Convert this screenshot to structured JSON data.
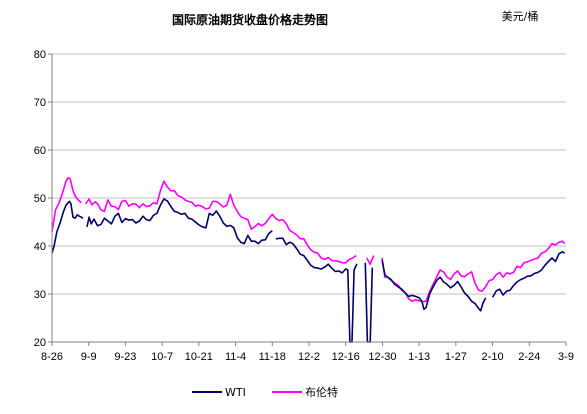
{
  "chart_data": {
    "type": "line",
    "title": "国际原油期货收盘价格走势图",
    "unit_label": "美元/桶",
    "xlabel": "",
    "ylabel": "",
    "ylim": [
      20,
      80
    ],
    "yticks": [
      "20",
      "30",
      "40",
      "50",
      "60",
      "70",
      "80"
    ],
    "xticks": [
      "8-26",
      "9-9",
      "9-23",
      "10-7",
      "10-21",
      "11-4",
      "11-18",
      "12-2",
      "12-16",
      "12-30",
      "1-13",
      "1-27",
      "2-10",
      "2-24",
      "3-9"
    ],
    "grid": true,
    "legend_position": "bottom",
    "series": [
      {
        "name": "WTI",
        "color": "#000066",
        "points": [
          [
            0.0,
            38.5
          ],
          [
            0.3,
            40
          ],
          [
            0.7,
            43
          ],
          [
            1.2,
            45
          ],
          [
            1.6,
            47
          ],
          [
            2.0,
            48.5
          ],
          [
            2.3,
            49
          ],
          [
            2.5,
            49.3
          ],
          [
            2.7,
            48.8
          ],
          [
            3.0,
            46
          ],
          [
            3.3,
            45.8
          ],
          [
            3.6,
            46.5
          ],
          [
            3.9,
            46.2
          ],
          [
            4.2,
            46
          ],
          [
            4.4,
            45.7
          ],
          null,
          [
            5.0,
            44
          ],
          [
            5.3,
            46
          ],
          [
            5.6,
            44.6
          ],
          [
            6.0,
            45.6
          ],
          [
            6.5,
            44.2
          ],
          [
            7.0,
            44.5
          ],
          [
            7.5,
            45.8
          ],
          [
            8.0,
            45.2
          ],
          [
            8.5,
            44.6
          ],
          [
            9.0,
            46.2
          ],
          [
            9.5,
            46.8
          ],
          [
            10.0,
            44.9
          ],
          [
            10.5,
            45.7
          ],
          [
            11.0,
            45.4
          ],
          [
            11.5,
            45.5
          ],
          [
            12.0,
            44.8
          ],
          [
            12.5,
            45.2
          ],
          [
            13.0,
            46.2
          ],
          [
            13.5,
            45.5
          ],
          [
            14.0,
            45.3
          ],
          [
            14.5,
            46.4
          ],
          [
            15.0,
            46.8
          ],
          [
            15.5,
            48.5
          ],
          [
            16.0,
            49.8
          ],
          [
            16.5,
            49.4
          ],
          [
            17.0,
            48.2
          ],
          [
            17.5,
            47.2
          ],
          [
            18.0,
            47
          ],
          [
            18.5,
            46.6
          ],
          [
            19.0,
            46.8
          ],
          [
            19.5,
            45.8
          ],
          [
            20.0,
            45.6
          ],
          [
            20.5,
            45
          ],
          [
            21.0,
            44.4
          ],
          [
            21.5,
            44
          ],
          [
            22.0,
            43.8
          ],
          [
            22.5,
            46.8
          ],
          [
            23.0,
            46.4
          ],
          [
            23.5,
            47.3
          ],
          [
            24.0,
            46.2
          ],
          [
            24.5,
            44.8
          ],
          [
            25.0,
            44.1
          ],
          [
            25.5,
            44.3
          ],
          [
            26.0,
            43.8
          ],
          [
            26.5,
            41.7
          ],
          [
            27.0,
            40.8
          ],
          [
            27.5,
            40.5
          ],
          [
            28.0,
            42.2
          ],
          [
            28.5,
            41
          ],
          [
            29.0,
            41
          ],
          [
            29.5,
            40.5
          ],
          [
            30.0,
            41.2
          ],
          [
            30.5,
            41.3
          ],
          [
            31.0,
            42.6
          ],
          [
            31.5,
            43.2
          ],
          null,
          [
            32.0,
            41.5
          ],
          [
            32.5,
            41.6
          ],
          [
            33.0,
            41.6
          ],
          [
            33.5,
            40.3
          ],
          [
            34.0,
            40.8
          ],
          [
            34.5,
            40.4
          ],
          [
            35.0,
            39.4
          ],
          [
            35.5,
            38.3
          ],
          [
            36.0,
            38
          ],
          [
            36.5,
            37
          ],
          [
            37.0,
            36
          ],
          [
            37.5,
            35.5
          ],
          [
            38.0,
            35.4
          ],
          [
            38.5,
            35.2
          ],
          [
            39.0,
            35.6
          ],
          [
            39.5,
            36.2
          ],
          [
            40.0,
            35.4
          ],
          [
            40.5,
            34.7
          ],
          [
            41.0,
            34.8
          ],
          [
            41.5,
            34.4
          ],
          [
            42.0,
            35.2
          ],
          [
            42.3,
            35.0
          ],
          [
            42.6,
            20
          ],
          [
            42.9,
            20
          ],
          [
            43.2,
            35.0
          ],
          [
            43.6,
            36.3
          ],
          null,
          [
            44.8,
            36.5
          ],
          [
            45.1,
            20
          ],
          [
            45.5,
            20
          ],
          [
            45.8,
            35.5
          ],
          null,
          [
            47.2,
            37
          ],
          [
            47.6,
            34
          ],
          [
            48.0,
            33.5
          ],
          [
            48.5,
            33
          ],
          [
            49.0,
            32
          ],
          [
            49.5,
            31.5
          ],
          [
            50.0,
            31
          ],
          [
            50.5,
            30.2
          ],
          [
            51.0,
            29.5
          ],
          [
            51.5,
            29.7
          ],
          [
            52.0,
            29.5
          ],
          [
            52.5,
            29.2
          ],
          [
            52.9,
            28.5
          ],
          [
            53.2,
            26.8
          ],
          [
            53.5,
            27.2
          ],
          [
            54.0,
            30
          ],
          [
            54.5,
            31.5
          ],
          [
            55.0,
            32.8
          ],
          [
            55.5,
            33.5
          ],
          [
            56.0,
            32.5
          ],
          [
            56.5,
            32
          ],
          [
            57.0,
            31.3
          ],
          [
            57.5,
            31.8
          ],
          [
            58.0,
            32.6
          ],
          [
            58.5,
            31.5
          ],
          [
            59.0,
            30.2
          ],
          [
            59.5,
            29.5
          ],
          [
            60.0,
            28.5
          ],
          [
            60.5,
            28
          ],
          [
            61.0,
            27
          ],
          [
            61.3,
            26.5
          ],
          [
            61.6,
            28
          ],
          [
            62.0,
            29.2
          ],
          null,
          [
            63.0,
            29.3
          ],
          [
            63.5,
            30.6
          ],
          [
            64.0,
            31
          ],
          [
            64.5,
            29.8
          ],
          [
            65.0,
            30.6
          ],
          [
            65.5,
            30.8
          ],
          [
            66.0,
            31.8
          ],
          [
            66.5,
            32.5
          ],
          [
            67.0,
            33
          ],
          [
            67.5,
            33.3
          ],
          [
            68.0,
            33.7
          ],
          [
            68.5,
            33.8
          ],
          [
            69.0,
            34.3
          ],
          [
            69.5,
            34.5
          ],
          [
            70.0,
            35
          ],
          [
            70.5,
            36
          ],
          [
            71.0,
            36.8
          ],
          [
            71.5,
            37.5
          ],
          [
            72.0,
            36.8
          ],
          [
            72.5,
            38.4
          ],
          [
            73.0,
            38.8
          ],
          [
            73.3,
            38.5
          ]
        ]
      },
      {
        "name": "布伦特",
        "color": "#ff00ff",
        "points": [
          [
            0.0,
            43
          ],
          [
            0.5,
            47.5
          ],
          [
            1.0,
            49
          ],
          [
            1.5,
            51
          ],
          [
            2.0,
            53.5
          ],
          [
            2.3,
            54.2
          ],
          [
            2.6,
            54
          ],
          [
            3.0,
            51.5
          ],
          [
            3.4,
            50.2
          ],
          [
            3.8,
            49.5
          ],
          [
            4.2,
            49
          ],
          null,
          [
            4.8,
            48.8
          ],
          [
            5.3,
            49.8
          ],
          [
            5.7,
            48.6
          ],
          [
            6.2,
            49.2
          ],
          [
            6.6,
            48.6
          ],
          [
            7.0,
            47.5
          ],
          [
            7.5,
            47.2
          ],
          [
            8.0,
            49.6
          ],
          [
            8.5,
            48.3
          ],
          [
            9.0,
            48.2
          ],
          [
            9.5,
            47.6
          ],
          [
            10.0,
            49.3
          ],
          [
            10.5,
            49.5
          ],
          [
            11.0,
            48.3
          ],
          [
            11.5,
            48.8
          ],
          [
            12.0,
            48.7
          ],
          [
            12.5,
            48
          ],
          [
            13.0,
            48.8
          ],
          [
            13.5,
            48.2
          ],
          [
            14.0,
            48.4
          ],
          [
            14.5,
            49
          ],
          [
            15.0,
            48.8
          ],
          [
            15.5,
            51.5
          ],
          [
            16.0,
            53.5
          ],
          [
            16.5,
            52.3
          ],
          [
            17.0,
            51.5
          ],
          [
            17.5,
            51.5
          ],
          [
            18.0,
            50.5
          ],
          [
            18.5,
            50.2
          ],
          [
            19.0,
            49.6
          ],
          [
            19.5,
            49.3
          ],
          [
            20.0,
            49.1
          ],
          [
            20.5,
            48.3
          ],
          [
            21.0,
            48.5
          ],
          [
            21.5,
            48.2
          ],
          [
            22.0,
            47.7
          ],
          [
            22.5,
            47.9
          ],
          [
            23.0,
            49.3
          ],
          [
            23.5,
            49.3
          ],
          [
            24.0,
            48.8
          ],
          [
            24.5,
            48.1
          ],
          [
            25.0,
            48.5
          ],
          [
            25.5,
            50.8
          ],
          [
            26.0,
            48.5
          ],
          [
            26.5,
            47.2
          ],
          [
            27.0,
            46.1
          ],
          [
            27.5,
            45.8
          ],
          [
            28.0,
            45.5
          ],
          [
            28.5,
            43.5
          ],
          [
            29.0,
            44
          ],
          [
            29.5,
            44.7
          ],
          [
            30.0,
            44.2
          ],
          [
            30.5,
            44.7
          ],
          [
            31.0,
            45.7
          ],
          [
            31.5,
            46.6
          ],
          [
            32.0,
            45.7
          ],
          [
            32.5,
            45.3
          ],
          [
            33.0,
            45.5
          ],
          [
            33.5,
            44.6
          ],
          [
            34.0,
            43.2
          ],
          [
            34.5,
            42.8
          ],
          [
            35.0,
            42.3
          ],
          [
            35.5,
            41.5
          ],
          [
            36.0,
            41.5
          ],
          [
            36.5,
            40.2
          ],
          [
            37.0,
            39.2
          ],
          [
            37.5,
            38.7
          ],
          [
            38.0,
            38.5
          ],
          [
            38.5,
            37.5
          ],
          [
            39.0,
            37.2
          ],
          [
            39.5,
            37.6
          ],
          [
            40.0,
            37
          ],
          [
            40.5,
            36.9
          ],
          [
            41.0,
            36.8
          ],
          [
            41.5,
            36.5
          ],
          [
            42.0,
            36.5
          ],
          [
            42.5,
            37.2
          ],
          [
            43.0,
            37.5
          ],
          [
            43.5,
            38
          ],
          null,
          [
            45.0,
            37.5
          ],
          [
            45.5,
            36.2
          ],
          [
            46.0,
            38
          ],
          null,
          [
            47.2,
            37.5
          ],
          [
            47.6,
            33.5
          ],
          [
            48.0,
            33.5
          ],
          [
            48.5,
            32.8
          ],
          [
            49.0,
            32.3
          ],
          [
            49.5,
            31.8
          ],
          [
            50.0,
            30.8
          ],
          [
            50.5,
            30.3
          ],
          [
            51.0,
            29
          ],
          [
            51.5,
            28.5
          ],
          [
            52.0,
            28.8
          ],
          [
            52.5,
            28.6
          ],
          [
            53.0,
            28.4
          ],
          [
            53.5,
            28.5
          ],
          [
            54.0,
            30.5
          ],
          [
            54.5,
            32
          ],
          [
            55.0,
            33.5
          ],
          [
            55.5,
            35
          ],
          [
            56.0,
            34.6
          ],
          [
            56.5,
            33.5
          ],
          [
            57.0,
            33
          ],
          [
            57.5,
            34.2
          ],
          [
            58.0,
            34.8
          ],
          [
            58.5,
            33.8
          ],
          [
            59.0,
            33.6
          ],
          [
            59.5,
            34.2
          ],
          [
            60.0,
            34.6
          ],
          [
            60.5,
            32.2
          ],
          [
            61.0,
            30.8
          ],
          [
            61.5,
            30.6
          ],
          [
            62.0,
            31.5
          ],
          [
            62.5,
            32.8
          ],
          [
            63.0,
            33
          ],
          [
            63.5,
            34
          ],
          [
            64.0,
            34.5
          ],
          [
            64.5,
            33.5
          ],
          [
            65.0,
            34.4
          ],
          [
            65.5,
            34.2
          ],
          [
            66.0,
            34.5
          ],
          [
            66.5,
            35.8
          ],
          [
            67.0,
            35.5
          ],
          [
            67.5,
            36.5
          ],
          [
            68.0,
            36.7
          ],
          [
            68.5,
            37
          ],
          [
            69.0,
            37.3
          ],
          [
            69.5,
            37.5
          ],
          [
            70.0,
            38.5
          ],
          [
            70.5,
            38.8
          ],
          [
            71.0,
            39.5
          ],
          [
            71.5,
            40.5
          ],
          [
            72.0,
            40.2
          ],
          [
            72.5,
            40.8
          ],
          [
            73.0,
            41
          ],
          [
            73.3,
            40.5
          ]
        ]
      }
    ]
  }
}
